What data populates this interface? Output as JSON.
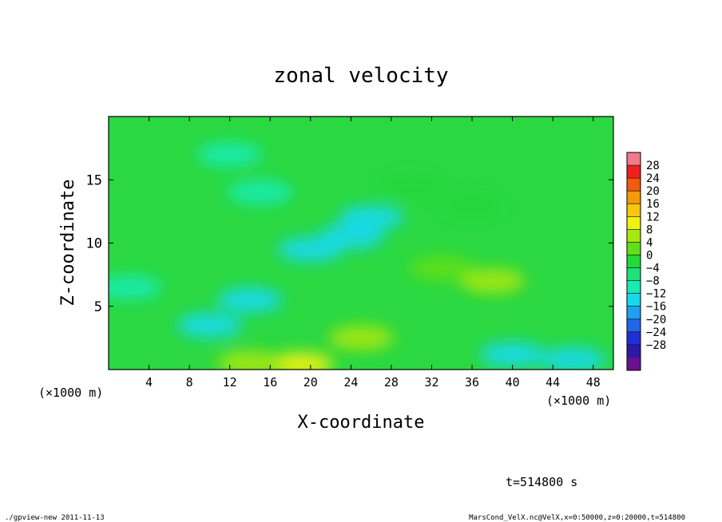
{
  "chart_data": {
    "type": "heatmap",
    "title": "zonal velocity",
    "xlabel": "X-coordinate",
    "ylabel": "Z-coordinate",
    "x_unit_left": "(×1000 m)",
    "x_unit_right": "(×1000 m)",
    "xlim": [
      0,
      50
    ],
    "ylim": [
      0,
      20
    ],
    "x_ticks": [
      4,
      8,
      12,
      16,
      20,
      24,
      28,
      32,
      36,
      40,
      44,
      48
    ],
    "x_tick_labels": [
      "4",
      "8",
      "12",
      "16",
      "20",
      "24",
      "28",
      "32",
      "36",
      "40",
      "44",
      "48"
    ],
    "y_ticks": [
      5,
      10,
      15
    ],
    "y_tick_labels": [
      "5",
      "10",
      "15"
    ],
    "colorbar": {
      "levels": [
        -30,
        -28,
        -24,
        -20,
        -16,
        -12,
        -8,
        -4,
        0,
        4,
        8,
        12,
        16,
        20,
        24,
        28,
        30
      ],
      "labels": [
        "28",
        "24",
        "20",
        "16",
        "12",
        "8",
        "4",
        "0",
        "−4",
        "−8",
        "−12",
        "−16",
        "−20",
        "−24",
        "−28"
      ],
      "colors": [
        "#6a0f8f",
        "#2a1aa6",
        "#1f2fd8",
        "#2266e8",
        "#1fa0f0",
        "#17d9ee",
        "#19ecb0",
        "#1de27a",
        "#22d83a",
        "#5ee01b",
        "#a6e812",
        "#eef212",
        "#f6c70c",
        "#f59a0b",
        "#f25a10",
        "#ee2020",
        "#f07a8a"
      ],
      "colors_order": "bottom_to_top"
    },
    "field_features": [
      {
        "x": 10,
        "z": 3.5,
        "value": -9
      },
      {
        "x": 14,
        "z": 5.5,
        "value": -10
      },
      {
        "x": 20,
        "z": 9.5,
        "value": -11
      },
      {
        "x": 24,
        "z": 10.5,
        "value": -12
      },
      {
        "x": 26,
        "z": 12,
        "value": -10
      },
      {
        "x": 15,
        "z": 14,
        "value": -6
      },
      {
        "x": 12,
        "z": 17,
        "value": -5
      },
      {
        "x": 40,
        "z": 1.2,
        "value": -11
      },
      {
        "x": 46,
        "z": 0.8,
        "value": -10
      },
      {
        "x": 38,
        "z": 7,
        "value": 9
      },
      {
        "x": 33,
        "z": 8,
        "value": 6
      },
      {
        "x": 25,
        "z": 2.5,
        "value": 8
      },
      {
        "x": 19,
        "z": 0.4,
        "value": 15
      },
      {
        "x": 14,
        "z": 0.5,
        "value": 11
      },
      {
        "x": 36,
        "z": 13,
        "value": 3
      },
      {
        "x": 2,
        "z": 6.5,
        "value": -6
      },
      {
        "x": 30,
        "z": 14.5,
        "value": 0
      }
    ]
  },
  "footer": {
    "time_label": "t=514800 s",
    "program": "./gpview-new  2011-11-13",
    "source": "MarsCond_VelX.nc@VelX,x=0:50000,z=0:20000,t=514800"
  }
}
